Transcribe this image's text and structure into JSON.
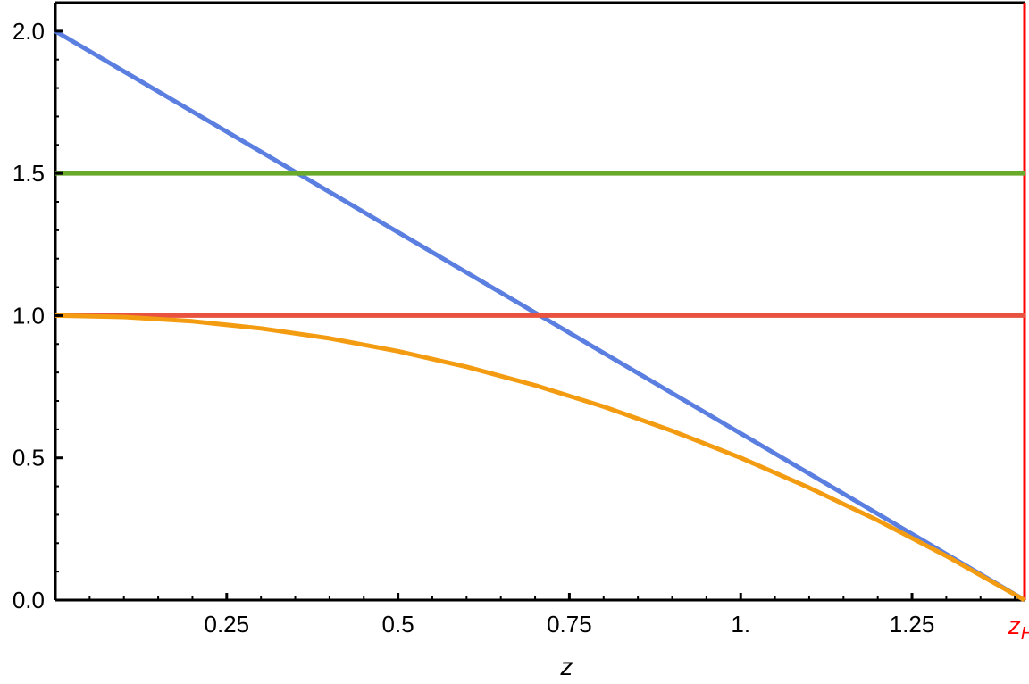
{
  "chart_data": {
    "type": "line",
    "title": "",
    "xlabel": "z",
    "ylabel": "",
    "xlim": [
      0,
      1.4142
    ],
    "ylim": [
      0,
      2.1
    ],
    "grid": false,
    "x_ticks": [
      {
        "value": 0.25,
        "label": "0.25"
      },
      {
        "value": 0.5,
        "label": "0.5"
      },
      {
        "value": 0.75,
        "label": "0.75"
      },
      {
        "value": 1.0,
        "label": "1."
      },
      {
        "value": 1.25,
        "label": "1.25"
      }
    ],
    "y_ticks": [
      {
        "value": 0,
        "label": "0.0"
      },
      {
        "value": 0.5,
        "label": "0.5"
      },
      {
        "value": 1.0,
        "label": "1.0"
      },
      {
        "value": 1.5,
        "label": "1.5"
      },
      {
        "value": 2.0,
        "label": "2.0"
      }
    ],
    "horizon": {
      "value": 1.4142,
      "label_main": "z",
      "label_sub": "H",
      "color": "#ff0000"
    },
    "series": [
      {
        "color": "#5b7fe0",
        "x": [
          0,
          0.3536,
          0.7071,
          1.0607,
          1.4142
        ],
        "y": [
          2.0,
          1.5,
          1.0,
          0.5,
          0.0
        ]
      },
      {
        "color": "#6aaa2a",
        "x": [
          0,
          1.4142
        ],
        "y": [
          1.5,
          1.5
        ]
      },
      {
        "color": "#e8523f",
        "x": [
          0,
          1.4142
        ],
        "y": [
          1.0,
          1.0
        ]
      },
      {
        "color": "#f39c12",
        "x": [
          0,
          0.1,
          0.2,
          0.3,
          0.4,
          0.5,
          0.6,
          0.7,
          0.8,
          0.9,
          1.0,
          1.1,
          1.2,
          1.3,
          1.4142
        ],
        "y": [
          1.0,
          0.995,
          0.98,
          0.955,
          0.92,
          0.875,
          0.82,
          0.755,
          0.68,
          0.595,
          0.5,
          0.395,
          0.28,
          0.155,
          0.0
        ]
      }
    ]
  }
}
